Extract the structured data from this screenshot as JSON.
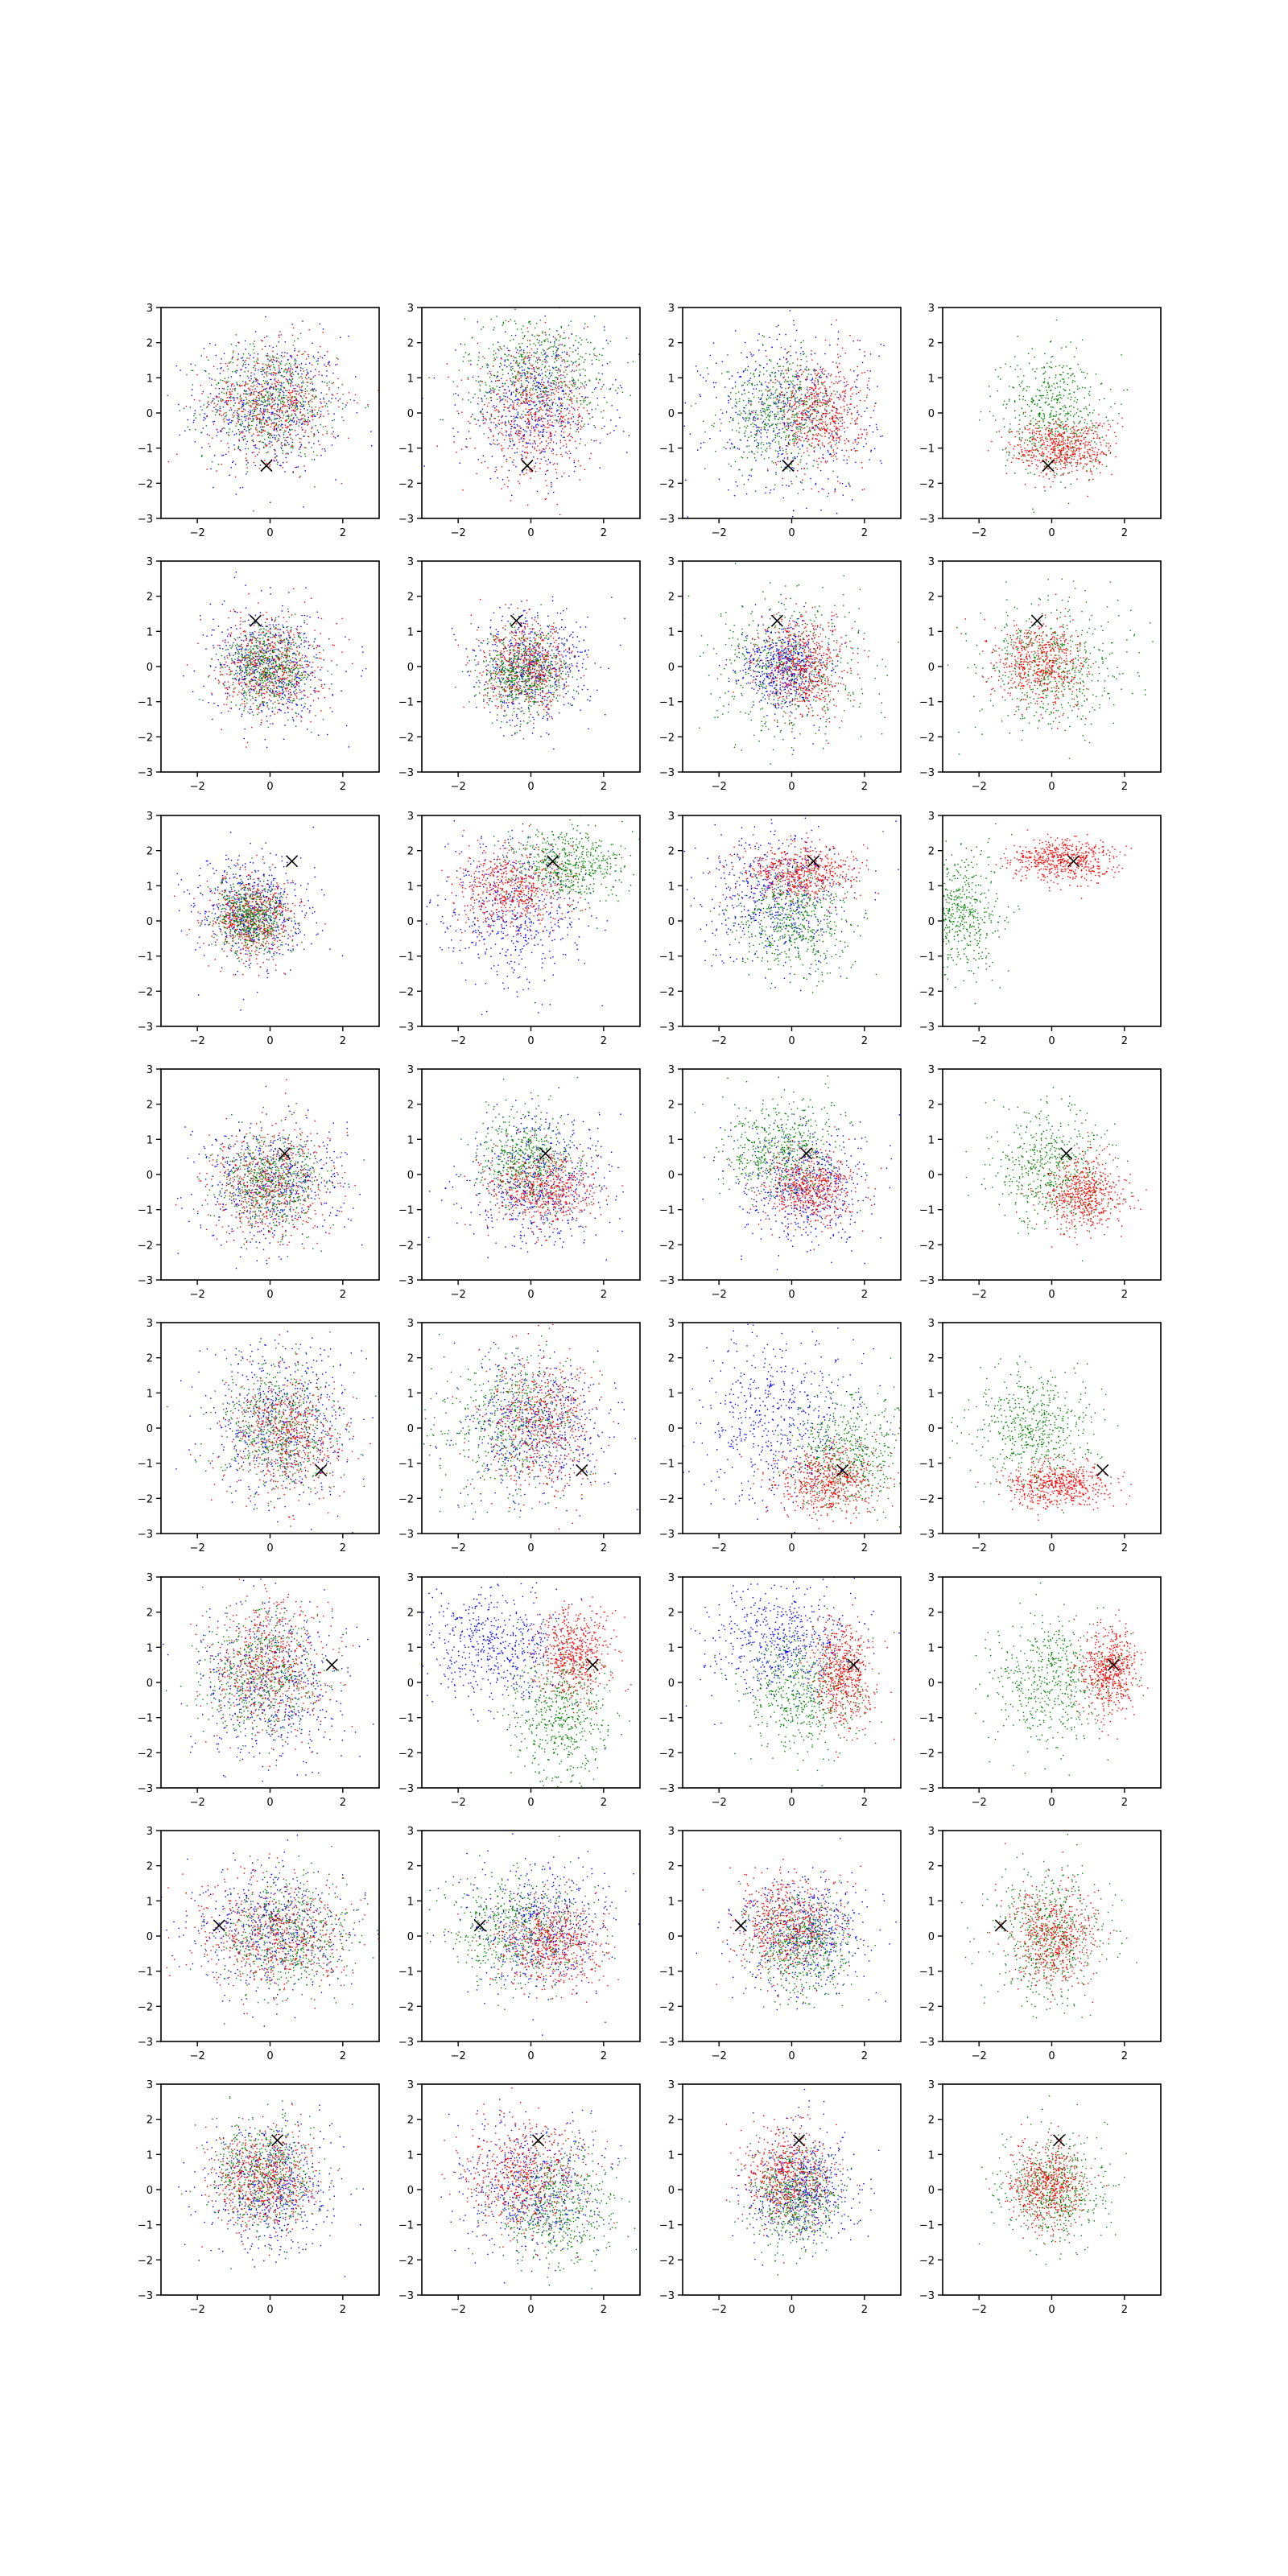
{
  "figure": {
    "grid_rows": 8,
    "grid_cols": 4
  },
  "chart_data": {
    "type": "scatter",
    "xlim": [
      -3,
      3
    ],
    "ylim": [
      -3,
      3
    ],
    "xticks": [
      -2,
      0,
      2
    ],
    "yticks": [
      -3,
      -2,
      -1,
      0,
      1,
      2,
      3
    ],
    "grid": false,
    "legend": "none",
    "colors": {
      "blue": "#0000ff",
      "green": "#008000",
      "red": "#ff0000",
      "marker": "#000000"
    },
    "rows": [
      {
        "marker": [
          -0.1,
          -1.5
        ],
        "panels": [
          {
            "series": [
              {
                "color": "blue",
                "cx": 0,
                "cy": 0.2,
                "sx": 1.0,
                "sy": 1.0
              },
              {
                "color": "green",
                "cx": 0,
                "cy": 0.3,
                "sx": 0.9,
                "sy": 0.8
              },
              {
                "color": "red",
                "cx": 0.1,
                "cy": 0.3,
                "sx": 0.9,
                "sy": 0.8
              }
            ]
          },
          {
            "series": [
              {
                "color": "green",
                "cx": 0.2,
                "cy": 1.2,
                "sx": 1.0,
                "sy": 0.8
              },
              {
                "color": "blue",
                "cx": 0.1,
                "cy": 0.2,
                "sx": 1.0,
                "sy": 1.0
              },
              {
                "color": "red",
                "cx": 0.1,
                "cy": -0.1,
                "sx": 0.8,
                "sy": 0.9
              }
            ]
          },
          {
            "series": [
              {
                "color": "blue",
                "cx": 0,
                "cy": 0,
                "sx": 1.2,
                "sy": 1.2
              },
              {
                "color": "green",
                "cx": -0.3,
                "cy": 0,
                "sx": 0.8,
                "sy": 0.8
              },
              {
                "color": "red",
                "cx": 0.8,
                "cy": 0,
                "sx": 0.6,
                "sy": 0.8
              }
            ]
          },
          {
            "series": [
              {
                "color": "green",
                "cx": 0,
                "cy": 0,
                "sx": 0.7,
                "sy": 0.9
              },
              {
                "color": "red",
                "cx": 0.3,
                "cy": -1.0,
                "sx": 0.7,
                "sy": 0.4
              }
            ]
          }
        ]
      },
      {
        "marker": [
          -0.4,
          1.3
        ],
        "panels": [
          {
            "series": [
              {
                "color": "blue",
                "cx": 0,
                "cy": 0,
                "sx": 0.8,
                "sy": 0.8
              },
              {
                "color": "red",
                "cx": 0,
                "cy": 0,
                "sx": 0.7,
                "sy": 0.7
              },
              {
                "color": "green",
                "cx": 0,
                "cy": 0,
                "sx": 0.6,
                "sy": 0.6
              }
            ]
          },
          {
            "series": [
              {
                "color": "blue",
                "cx": 0,
                "cy": 0,
                "sx": 0.8,
                "sy": 0.8
              },
              {
                "color": "red",
                "cx": -0.1,
                "cy": 0,
                "sx": 0.6,
                "sy": 0.6
              },
              {
                "color": "green",
                "cx": -0.2,
                "cy": -0.2,
                "sx": 0.6,
                "sy": 0.6
              }
            ]
          },
          {
            "series": [
              {
                "color": "green",
                "cx": 0,
                "cy": 0,
                "sx": 1.0,
                "sy": 1.0
              },
              {
                "color": "blue",
                "cx": -0.2,
                "cy": 0,
                "sx": 0.6,
                "sy": 0.6
              },
              {
                "color": "red",
                "cx": 0.3,
                "cy": 0,
                "sx": 0.6,
                "sy": 0.7
              }
            ]
          },
          {
            "series": [
              {
                "color": "green",
                "cx": 0,
                "cy": 0,
                "sx": 1.0,
                "sy": 0.9
              },
              {
                "color": "red",
                "cx": -0.3,
                "cy": 0.1,
                "sx": 0.6,
                "sy": 0.6
              }
            ]
          }
        ]
      },
      {
        "marker": [
          0.6,
          1.7
        ],
        "panels": [
          {
            "series": [
              {
                "color": "blue",
                "cx": -0.5,
                "cy": 0.2,
                "sx": 0.8,
                "sy": 0.8
              },
              {
                "color": "red",
                "cx": -0.5,
                "cy": 0.1,
                "sx": 0.6,
                "sy": 0.6
              },
              {
                "color": "green",
                "cx": -0.5,
                "cy": 0.1,
                "sx": 0.5,
                "sy": 0.5
              }
            ]
          },
          {
            "series": [
              {
                "color": "blue",
                "cx": -0.5,
                "cy": 0.3,
                "sx": 1.0,
                "sy": 1.0
              },
              {
                "color": "green",
                "cx": 1.0,
                "cy": 1.6,
                "sx": 0.8,
                "sy": 0.5
              },
              {
                "color": "red",
                "cx": -0.5,
                "cy": 0.9,
                "sx": 0.8,
                "sy": 0.6
              }
            ]
          },
          {
            "series": [
              {
                "color": "blue",
                "cx": -0.5,
                "cy": 0.7,
                "sx": 1.0,
                "sy": 0.9
              },
              {
                "color": "green",
                "cx": 0,
                "cy": 0,
                "sx": 0.8,
                "sy": 0.8
              },
              {
                "color": "red",
                "cx": 0.2,
                "cy": 1.4,
                "sx": 0.8,
                "sy": 0.4
              }
            ]
          },
          {
            "series": [
              {
                "color": "green",
                "cx": -2.6,
                "cy": 0.2,
                "sx": 0.6,
                "sy": 0.9
              },
              {
                "color": "red",
                "cx": 0.3,
                "cy": 1.7,
                "sx": 0.7,
                "sy": 0.3
              }
            ]
          }
        ]
      },
      {
        "marker": [
          0.4,
          0.6
        ],
        "panels": [
          {
            "series": [
              {
                "color": "blue",
                "cx": 0,
                "cy": -0.3,
                "sx": 1.0,
                "sy": 0.9
              },
              {
                "color": "red",
                "cx": 0,
                "cy": -0.3,
                "sx": 0.8,
                "sy": 0.8
              },
              {
                "color": "green",
                "cx": 0,
                "cy": -0.2,
                "sx": 0.7,
                "sy": 0.7
              }
            ]
          },
          {
            "series": [
              {
                "color": "blue",
                "cx": 0.2,
                "cy": -0.2,
                "sx": 1.0,
                "sy": 0.9
              },
              {
                "color": "green",
                "cx": -0.1,
                "cy": 0.4,
                "sx": 0.7,
                "sy": 0.7
              },
              {
                "color": "red",
                "cx": 0.3,
                "cy": -0.4,
                "sx": 0.7,
                "sy": 0.5
              }
            ]
          },
          {
            "series": [
              {
                "color": "blue",
                "cx": 0.4,
                "cy": -0.3,
                "sx": 0.9,
                "sy": 0.8
              },
              {
                "color": "green",
                "cx": -0.3,
                "cy": 0.7,
                "sx": 0.8,
                "sy": 0.7
              },
              {
                "color": "red",
                "cx": 0.5,
                "cy": -0.4,
                "sx": 0.6,
                "sy": 0.5
              }
            ]
          },
          {
            "series": [
              {
                "color": "green",
                "cx": 0,
                "cy": 0.2,
                "sx": 0.8,
                "sy": 0.9
              },
              {
                "color": "red",
                "cx": 0.9,
                "cy": -0.6,
                "sx": 0.5,
                "sy": 0.5
              }
            ]
          }
        ]
      },
      {
        "marker": [
          1.4,
          -1.2
        ],
        "panels": [
          {
            "series": [
              {
                "color": "blue",
                "cx": 0.3,
                "cy": 0,
                "sx": 1.0,
                "sy": 1.1
              },
              {
                "color": "green",
                "cx": 0.3,
                "cy": 0,
                "sx": 0.8,
                "sy": 0.9
              },
              {
                "color": "red",
                "cx": 0.5,
                "cy": -0.2,
                "sx": 0.8,
                "sy": 0.9
              }
            ]
          },
          {
            "series": [
              {
                "color": "green",
                "cx": -0.5,
                "cy": 0.2,
                "sx": 1.0,
                "sy": 1.0
              },
              {
                "color": "blue",
                "cx": 0.1,
                "cy": 0,
                "sx": 1.0,
                "sy": 1.0
              },
              {
                "color": "red",
                "cx": 0.3,
                "cy": 0.2,
                "sx": 0.7,
                "sy": 1.0
              }
            ]
          },
          {
            "series": [
              {
                "color": "blue",
                "cx": -0.3,
                "cy": 0.3,
                "sx": 1.2,
                "sy": 1.2
              },
              {
                "color": "green",
                "cx": 1.5,
                "cy": -0.8,
                "sx": 0.8,
                "sy": 0.8
              },
              {
                "color": "red",
                "cx": 1.0,
                "cy": -1.5,
                "sx": 0.7,
                "sy": 0.5
              }
            ]
          },
          {
            "series": [
              {
                "color": "green",
                "cx": -0.5,
                "cy": 0,
                "sx": 0.8,
                "sy": 0.8
              },
              {
                "color": "red",
                "cx": 0.2,
                "cy": -1.6,
                "sx": 0.7,
                "sy": 0.3
              }
            ]
          }
        ]
      },
      {
        "marker": [
          1.7,
          0.5
        ],
        "panels": [
          {
            "series": [
              {
                "color": "blue",
                "cx": 0,
                "cy": 0,
                "sx": 1.0,
                "sy": 1.1
              },
              {
                "color": "green",
                "cx": -0.2,
                "cy": 0.3,
                "sx": 0.8,
                "sy": 0.9
              },
              {
                "color": "red",
                "cx": 0,
                "cy": 0.5,
                "sx": 0.8,
                "sy": 0.9
              }
            ]
          },
          {
            "series": [
              {
                "color": "blue",
                "cx": -1.0,
                "cy": 1.0,
                "sx": 1.0,
                "sy": 0.8
              },
              {
                "color": "green",
                "cx": 0.8,
                "cy": -1.0,
                "sx": 0.7,
                "sy": 0.9
              },
              {
                "color": "red",
                "cx": 1.2,
                "cy": 0.8,
                "sx": 0.5,
                "sy": 0.6
              }
            ]
          },
          {
            "series": [
              {
                "color": "blue",
                "cx": -0.3,
                "cy": 1.1,
                "sx": 1.0,
                "sy": 0.8
              },
              {
                "color": "green",
                "cx": 0.3,
                "cy": -0.3,
                "sx": 0.8,
                "sy": 0.8
              },
              {
                "color": "red",
                "cx": 1.4,
                "cy": 0.2,
                "sx": 0.4,
                "sy": 0.8
              }
            ]
          },
          {
            "series": [
              {
                "color": "green",
                "cx": 0,
                "cy": 0,
                "sx": 0.9,
                "sy": 0.9
              },
              {
                "color": "red",
                "cx": 1.6,
                "cy": 0.3,
                "sx": 0.4,
                "sy": 0.6
              }
            ]
          }
        ]
      },
      {
        "marker": [
          -1.4,
          0.3
        ],
        "panels": [
          {
            "series": [
              {
                "color": "blue",
                "cx": 0,
                "cy": 0.2,
                "sx": 1.1,
                "sy": 0.9
              },
              {
                "color": "green",
                "cx": 0.5,
                "cy": 0,
                "sx": 0.9,
                "sy": 0.8
              },
              {
                "color": "red",
                "cx": 0,
                "cy": 0,
                "sx": 1.0,
                "sy": 0.8
              }
            ]
          },
          {
            "series": [
              {
                "color": "blue",
                "cx": 0.2,
                "cy": 0.2,
                "sx": 1.0,
                "sy": 0.9
              },
              {
                "color": "green",
                "cx": -0.3,
                "cy": 0.2,
                "sx": 0.9,
                "sy": 0.8
              },
              {
                "color": "red",
                "cx": 0.6,
                "cy": -0.3,
                "sx": 0.7,
                "sy": 0.6
              }
            ]
          },
          {
            "series": [
              {
                "color": "blue",
                "cx": 0.3,
                "cy": 0.1,
                "sx": 0.9,
                "sy": 0.8
              },
              {
                "color": "green",
                "cx": 0.2,
                "cy": -0.3,
                "sx": 0.7,
                "sy": 0.7
              },
              {
                "color": "red",
                "cx": -0.1,
                "cy": 0.3,
                "sx": 0.7,
                "sy": 0.7
              }
            ]
          },
          {
            "series": [
              {
                "color": "green",
                "cx": 0,
                "cy": 0,
                "sx": 0.8,
                "sy": 0.9
              },
              {
                "color": "red",
                "cx": 0,
                "cy": 0,
                "sx": 0.6,
                "sy": 0.7
              }
            ]
          }
        ]
      },
      {
        "marker": [
          0.2,
          1.4
        ],
        "panels": [
          {
            "series": [
              {
                "color": "blue",
                "cx": 0,
                "cy": 0,
                "sx": 0.9,
                "sy": 0.9
              },
              {
                "color": "green",
                "cx": -0.2,
                "cy": 0.4,
                "sx": 0.7,
                "sy": 0.8
              },
              {
                "color": "red",
                "cx": -0.2,
                "cy": 0.3,
                "sx": 0.7,
                "sy": 0.7
              }
            ]
          },
          {
            "series": [
              {
                "color": "blue",
                "cx": 0,
                "cy": 0,
                "sx": 1.0,
                "sy": 0.9
              },
              {
                "color": "green",
                "cx": 0.7,
                "cy": -0.5,
                "sx": 0.8,
                "sy": 0.8
              },
              {
                "color": "red",
                "cx": -0.2,
                "cy": 0.4,
                "sx": 0.8,
                "sy": 0.8
              }
            ]
          },
          {
            "series": [
              {
                "color": "blue",
                "cx": 0.3,
                "cy": 0,
                "sx": 0.7,
                "sy": 0.8
              },
              {
                "color": "green",
                "cx": 0.1,
                "cy": -0.2,
                "sx": 0.6,
                "sy": 0.7
              },
              {
                "color": "red",
                "cx": -0.1,
                "cy": 0.4,
                "sx": 0.6,
                "sy": 0.7
              }
            ]
          },
          {
            "series": [
              {
                "color": "green",
                "cx": 0,
                "cy": 0,
                "sx": 0.7,
                "sy": 0.8
              },
              {
                "color": "red",
                "cx": -0.1,
                "cy": 0.1,
                "sx": 0.5,
                "sy": 0.6
              }
            ]
          }
        ]
      }
    ]
  }
}
